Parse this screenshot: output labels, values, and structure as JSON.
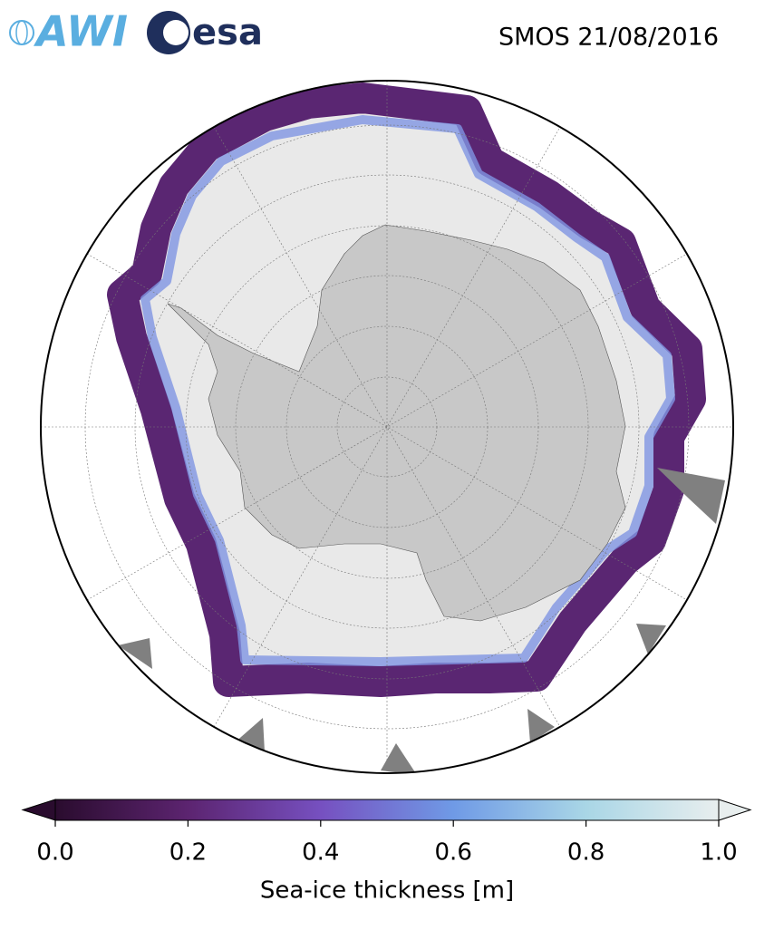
{
  "header": {
    "logos": [
      "AWI",
      "esa"
    ],
    "title": "SMOS 21/08/2016"
  },
  "colorbar": {
    "label": "Sea-ice thickness [m]",
    "xlim": [
      0,
      1
    ],
    "xticks": [
      {
        "value": 0,
        "label": "0.0"
      },
      0.2,
      0.4,
      0.6,
      0.8,
      {
        "value": 1,
        "label": "1.0"
      }
    ],
    "colors": [
      "#2a0c2e",
      "#5c2470",
      "#7650c0",
      "#6f9ae6",
      "#a9d6e6",
      "#e8eeee"
    ],
    "extend": "both"
  }
}
